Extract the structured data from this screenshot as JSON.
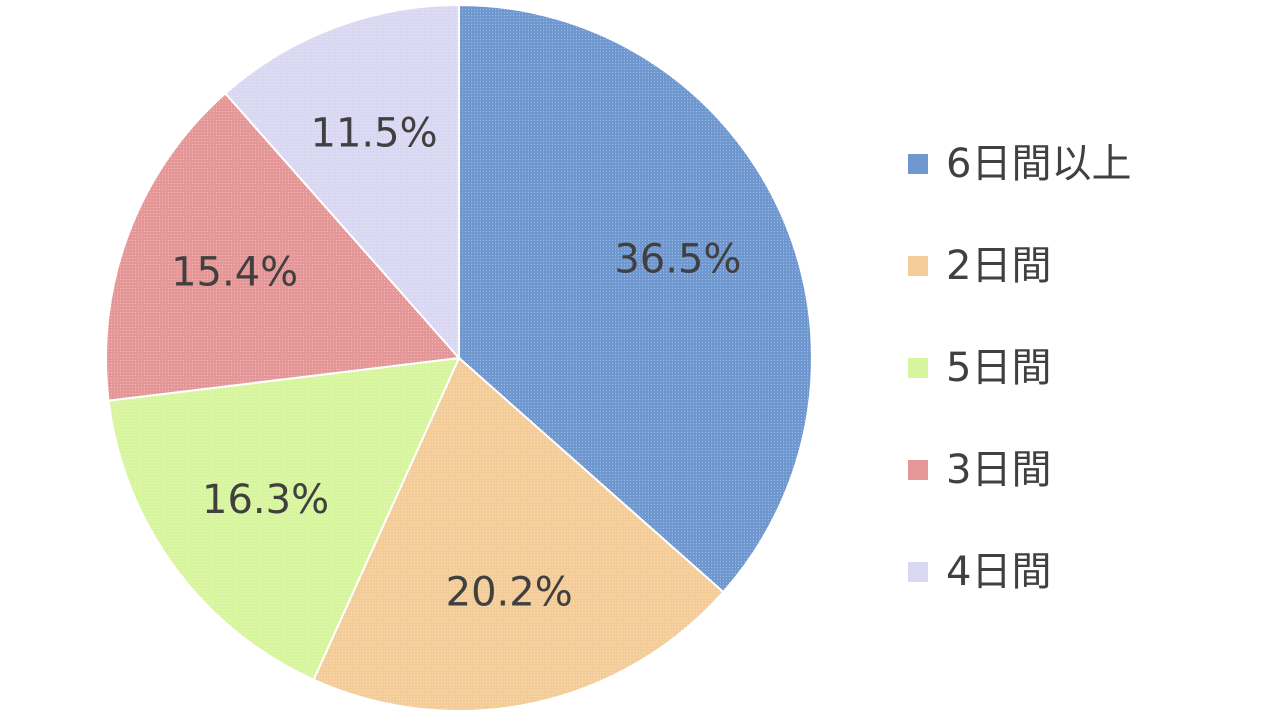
{
  "chart_data": {
    "type": "pie",
    "categories": [
      "6日間以上",
      "2日間",
      "5日間",
      "3日間",
      "4日間"
    ],
    "values": [
      36.5,
      20.2,
      16.3,
      15.4,
      11.5
    ],
    "labels": [
      "36.5%",
      "20.2%",
      "16.3%",
      "15.4%",
      "11.5%"
    ],
    "colors": [
      "#6f97d0",
      "#f3cc98",
      "#d6f59d",
      "#e59696",
      "#d9d7f1"
    ],
    "start_angle": "12 o'clock",
    "direction": "clockwise",
    "legend_position": "right"
  }
}
